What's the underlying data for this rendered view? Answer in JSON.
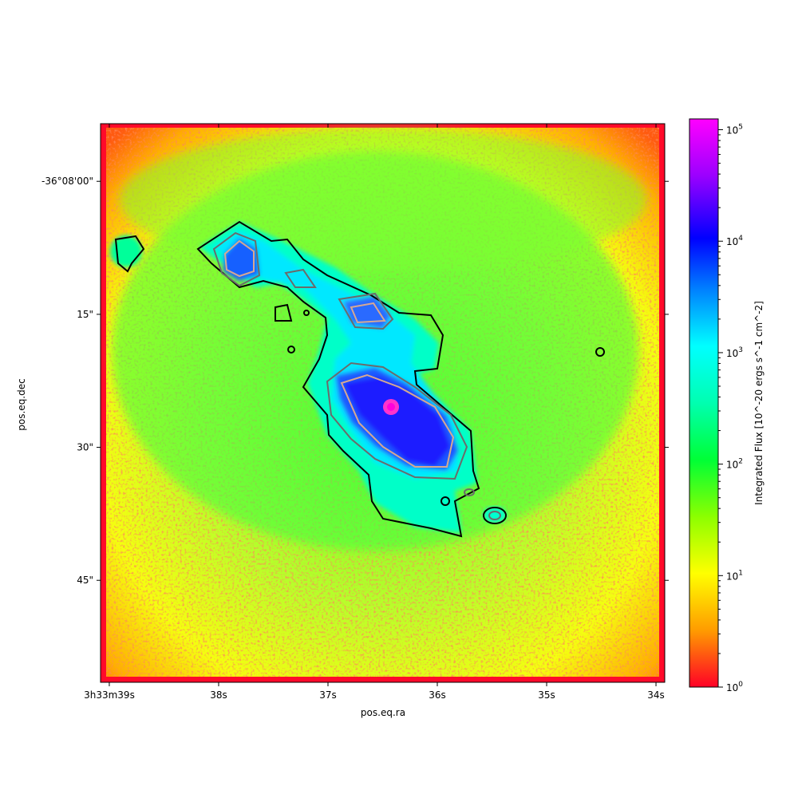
{
  "chart_data": {
    "type": "heatmap",
    "title": "",
    "xlabel": "pos.eq.ra",
    "ylabel": "pos.eq.dec",
    "x_ticks": [
      {
        "value": 39,
        "label": "3h33m39s"
      },
      {
        "value": 38,
        "label": "38s"
      },
      {
        "value": 37,
        "label": "37s"
      },
      {
        "value": 36,
        "label": "36s"
      },
      {
        "value": 35,
        "label": "35s"
      },
      {
        "value": 34,
        "label": "34s"
      }
    ],
    "y_ticks": [
      {
        "value": 0,
        "label": "-36°08'00\""
      },
      {
        "value": 15,
        "label": "15\""
      },
      {
        "value": 30,
        "label": "30\""
      },
      {
        "value": 45,
        "label": "45\""
      }
    ],
    "xlim": [
      39.08,
      33.92
    ],
    "ylim": [
      -6.5,
      56.5
    ],
    "colorbar": {
      "label": "Integrated Flux [10^-20 ergs s^-1 cm^-2]",
      "scale": "log",
      "range": [
        1,
        125000
      ],
      "colormap": [
        "#ff0026",
        "#ff9c00",
        "#ffff00",
        "#8cff00",
        "#00ff36",
        "#00ffb0",
        "#00ffff",
        "#0080ff",
        "#0000ff",
        "#9b00ff",
        "#ff00ff"
      ],
      "ticks": [
        {
          "value": 1,
          "base": "10",
          "exp": "0"
        },
        {
          "value": 10,
          "base": "10",
          "exp": "1"
        },
        {
          "value": 100,
          "base": "10",
          "exp": "2"
        },
        {
          "value": 1000,
          "base": "10",
          "exp": "3"
        },
        {
          "value": 10000,
          "base": "10",
          "exp": "4"
        },
        {
          "value": 100000,
          "base": "10",
          "exp": "5"
        }
      ]
    },
    "contour_colors": [
      "#000000",
      "#6b6b6b",
      "#d6a892"
    ],
    "peak_color": "#ff33cc"
  }
}
